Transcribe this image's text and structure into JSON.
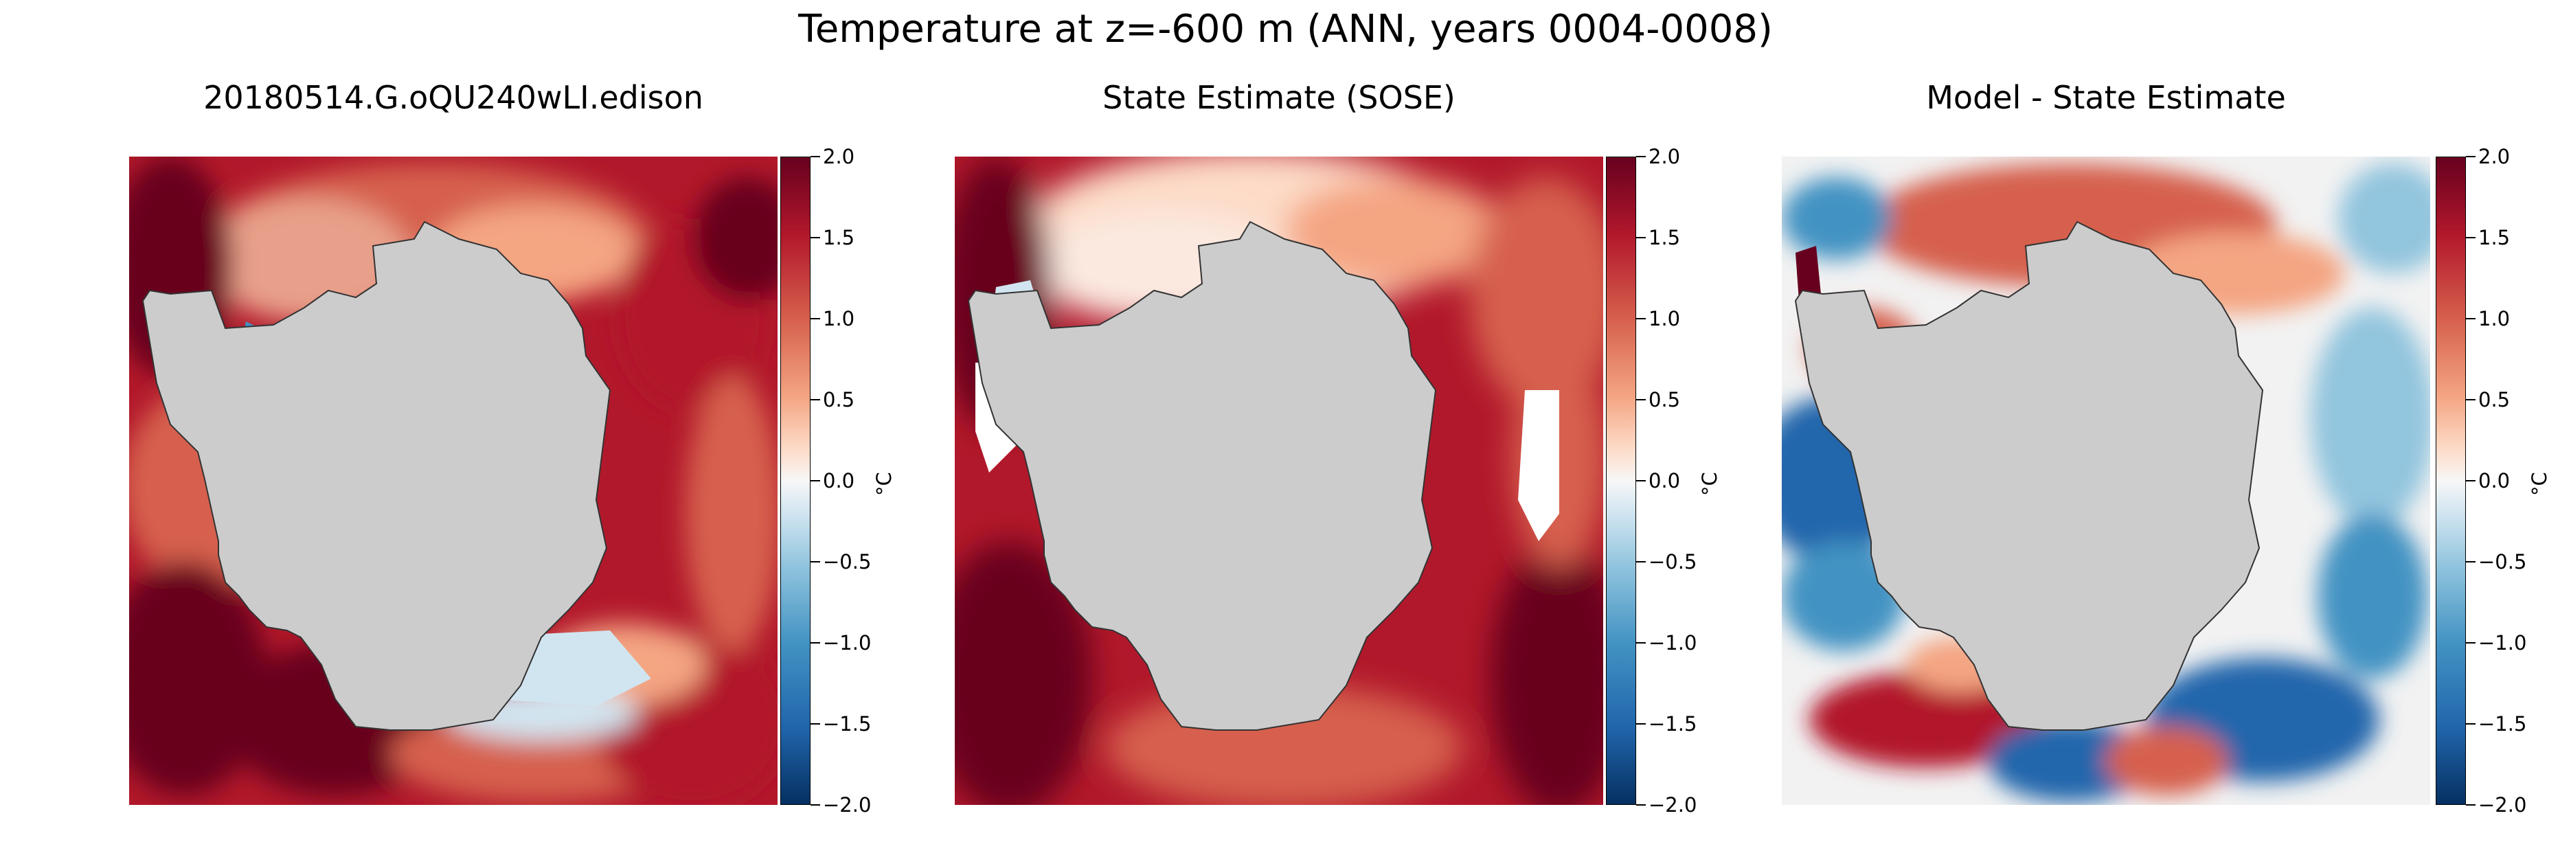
{
  "figure": {
    "title": "Temperature at z=-600 m (ANN, years 0004-0008)"
  },
  "colorbar": {
    "ticks": [
      "2.0",
      "1.5",
      "1.0",
      "0.5",
      "0.0",
      "−0.5",
      "−1.0",
      "−1.5",
      "−2.0"
    ],
    "unit": "°C",
    "colormap": [
      "#67001f",
      "#b2182b",
      "#d6604d",
      "#f4a582",
      "#fddbc7",
      "#f7f7f7",
      "#d1e5f0",
      "#92c5de",
      "#4393c3",
      "#2166ac",
      "#053061"
    ],
    "land_color": "#cccccc"
  },
  "chart_data": [
    {
      "type": "heatmap",
      "title": "20180514.G.oQU240wLI.edison",
      "colorbar_label": "°C",
      "vmin": -2.0,
      "vmax": 2.0,
      "ticks": [
        2.0,
        1.5,
        1.0,
        0.5,
        0.0,
        -0.5,
        -1.0,
        -1.5,
        -2.0
      ]
    },
    {
      "type": "heatmap",
      "title": "State Estimate (SOSE)",
      "colorbar_label": "°C",
      "vmin": -2.0,
      "vmax": 2.0,
      "ticks": [
        2.0,
        1.5,
        1.0,
        0.5,
        0.0,
        -0.5,
        -1.0,
        -1.5,
        -2.0
      ]
    },
    {
      "type": "heatmap",
      "title": "Model - State Estimate",
      "colorbar_label": "°C",
      "vmin": -2.0,
      "vmax": 2.0,
      "ticks": [
        2.0,
        1.5,
        1.0,
        0.5,
        0.0,
        -0.5,
        -1.0,
        -1.5,
        -2.0
      ]
    }
  ]
}
